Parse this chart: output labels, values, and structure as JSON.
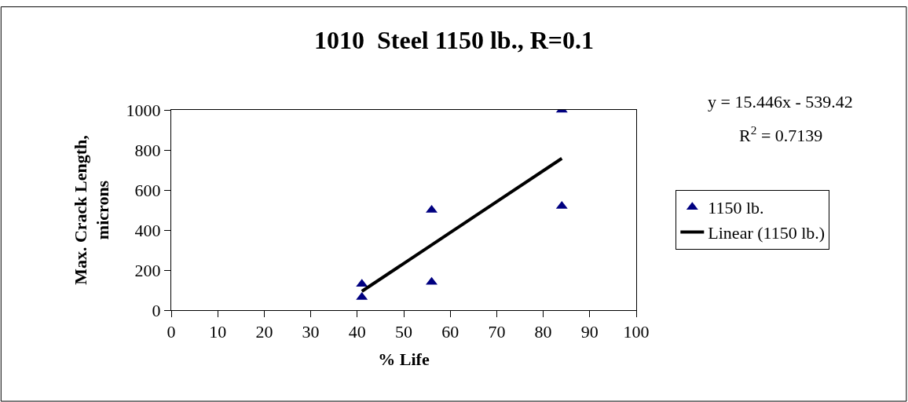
{
  "chart_data": {
    "type": "scatter",
    "title": "1010  Steel 1150 lb., R=0.1",
    "xlabel": "% Life",
    "ylabel": "Max. Crack Length, microns",
    "annotations": [
      "y = 15.446x - 539.42",
      "R$^{2}$ = 0.7139"
    ],
    "series": [
      {
        "name": "1150 lb.",
        "color": "#000080",
        "marker": "triangle",
        "x": [
          41,
          41,
          56,
          56,
          84,
          84
        ],
        "values": [
          130,
          65,
          500,
          140,
          1000,
          520
        ]
      },
      {
        "name": "Linear (1150 lb.)",
        "type": "line",
        "color": "#000000",
        "marker": "none",
        "line_style": "solid",
        "x": [
          41,
          84
        ],
        "values": [
          94,
          758
        ]
      }
    ],
    "xlim": [
      0,
      100
    ],
    "xticks": [
      0,
      10,
      20,
      30,
      40,
      50,
      60,
      70,
      80,
      90,
      100
    ],
    "ylim": [
      0,
      1000
    ],
    "yticks": [
      0,
      200,
      400,
      600,
      800,
      1000
    ],
    "grid": false,
    "legend": "right"
  }
}
